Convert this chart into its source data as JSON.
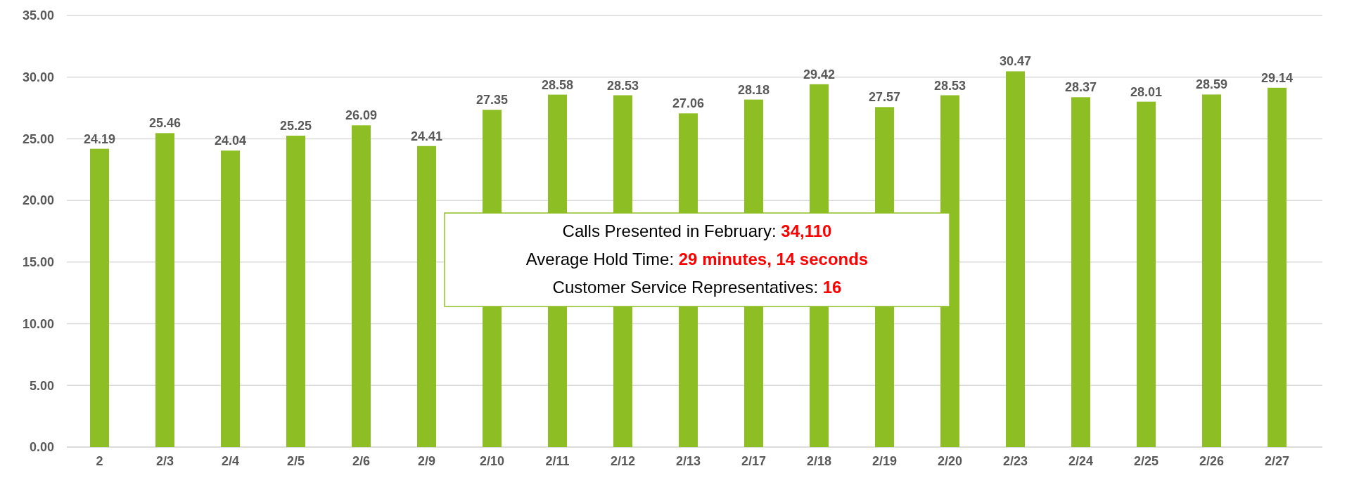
{
  "chart_data": {
    "type": "bar",
    "categories": [
      "2",
      "2/3",
      "2/4",
      "2/5",
      "2/6",
      "2/9",
      "2/10",
      "2/11",
      "2/12",
      "2/13",
      "2/17",
      "2/18",
      "2/19",
      "2/20",
      "2/23",
      "2/24",
      "2/25",
      "2/26",
      "2/27"
    ],
    "values": [
      24.19,
      25.46,
      24.04,
      25.25,
      26.09,
      24.41,
      27.35,
      28.58,
      28.53,
      27.06,
      28.18,
      29.42,
      27.57,
      28.53,
      30.47,
      28.37,
      28.01,
      28.59,
      29.14
    ],
    "color": "#8dbe24",
    "ylim": [
      0,
      35
    ],
    "yticks": [
      {
        "value": 0,
        "label": "0.00"
      },
      {
        "value": 5,
        "label": "5.00"
      },
      {
        "value": 10,
        "label": "10.00"
      },
      {
        "value": 15,
        "label": "15.00"
      },
      {
        "value": 20,
        "label": "20.00"
      },
      {
        "value": 25,
        "label": "25.00"
      },
      {
        "value": 30,
        "label": "30.00"
      },
      {
        "value": 35,
        "label": "35.00"
      }
    ],
    "grid": "y",
    "data_labels": true,
    "annotations": [
      "Calls Presented in February: 34,110",
      "Average Hold Time: 29 minutes, 14 seconds",
      "Customer Service Representatives: 16"
    ]
  }
}
